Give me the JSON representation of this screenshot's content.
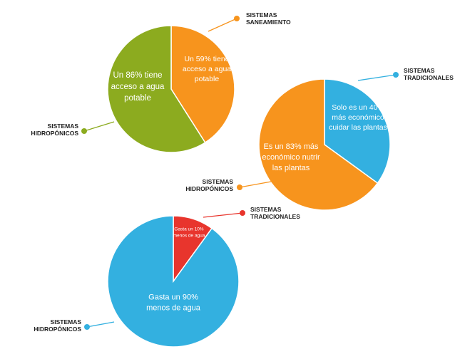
{
  "chart_data": [
    {
      "type": "pie",
      "slices": [
        {
          "label": "SISTEMAS SANEAMIENTO",
          "value": 41,
          "text": [
            "Un 59% tiene",
            "acceso a agua",
            "potable"
          ],
          "color": "#f7941d"
        },
        {
          "label": "SISTEMAS HIDROPÓNICOS",
          "value": 59,
          "text": [
            "Un 86% tiene",
            "acceso a agua",
            "potable"
          ],
          "color": "#8cab1f"
        }
      ]
    },
    {
      "type": "pie",
      "slices": [
        {
          "label": "SISTEMAS TRADICIONALES",
          "value": 35,
          "text": [
            "Solo es un 40%",
            "más económico",
            "cuidar las plantas"
          ],
          "color": "#33b0e0"
        },
        {
          "label": "SISTEMAS HIDROPÓNICOS",
          "value": 65,
          "text": [
            "Es un 83% más",
            "económico nutrir",
            "las plantas"
          ],
          "color": "#f7941d"
        }
      ]
    },
    {
      "type": "pie",
      "slices": [
        {
          "label": "SISTEMAS TRADICIONALES",
          "value": 10,
          "text": [
            "Gasta un 10%",
            "menos de agua"
          ],
          "color": "#e8352d"
        },
        {
          "label": "SISTEMAS HIDROPÓNICOS",
          "value": 90,
          "text": [
            "Gasta un 90%",
            "menos de agua"
          ],
          "color": "#33b0e0"
        }
      ]
    }
  ]
}
